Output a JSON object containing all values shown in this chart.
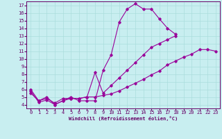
{
  "xlabel": "Windchill (Refroidissement éolien,°C)",
  "xlim": [
    -0.5,
    23.5
  ],
  "ylim": [
    3.5,
    17.5
  ],
  "xticks": [
    0,
    1,
    2,
    3,
    4,
    5,
    6,
    7,
    8,
    9,
    10,
    11,
    12,
    13,
    14,
    15,
    16,
    17,
    18,
    19,
    20,
    21,
    22,
    23
  ],
  "yticks": [
    4,
    5,
    6,
    7,
    8,
    9,
    10,
    11,
    12,
    13,
    14,
    15,
    16,
    17
  ],
  "bg_color": "#c8eef0",
  "line_color": "#990099",
  "grid_color": "#aadddd",
  "curve1_x": [
    0,
    1,
    2,
    3,
    4,
    5,
    6,
    7,
    8,
    9,
    10,
    11,
    12,
    13,
    14,
    15,
    16,
    17,
    18
  ],
  "curve1_y": [
    6.0,
    4.5,
    5.0,
    4.0,
    4.5,
    5.0,
    4.5,
    4.5,
    4.5,
    8.5,
    10.5,
    14.8,
    16.5,
    17.2,
    16.5,
    16.5,
    15.2,
    14.0,
    13.2
  ],
  "curve2_x": [
    0,
    1,
    2,
    3,
    4,
    5,
    6,
    7,
    8,
    9,
    10,
    11,
    12,
    13,
    14,
    15,
    16,
    17,
    18,
    19,
    20,
    21,
    22,
    23
  ],
  "curve2_y": [
    5.5,
    4.5,
    4.8,
    4.2,
    4.8,
    4.8,
    4.8,
    5.0,
    5.0,
    5.2,
    5.4,
    5.8,
    6.3,
    6.8,
    7.3,
    7.9,
    8.4,
    9.2,
    9.7,
    10.2,
    10.6,
    11.2,
    11.2,
    11.0
  ],
  "curve3_x": [
    0,
    1,
    2,
    3,
    4,
    5,
    6,
    7,
    8,
    9,
    10,
    11,
    12,
    13,
    14,
    15,
    16,
    17,
    18
  ],
  "curve3_y": [
    5.8,
    4.3,
    4.6,
    4.0,
    4.5,
    4.8,
    4.8,
    5.0,
    8.2,
    5.5,
    6.5,
    7.5,
    8.5,
    9.5,
    10.5,
    11.5,
    12.0,
    12.5,
    13.0
  ]
}
